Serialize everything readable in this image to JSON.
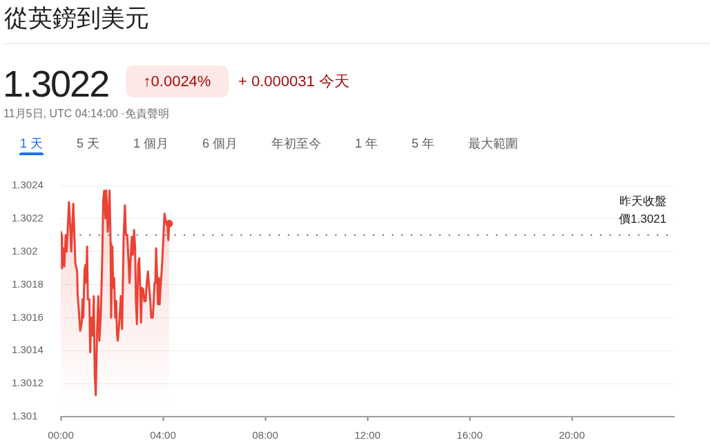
{
  "chart_data": {
    "type": "area",
    "title": "從英鎊到美元",
    "subtitle": "1.3022",
    "annotations": [
      "↑0.0024%",
      "+ 0.000031 今天",
      "11月5日, UTC 04:14:00 ·免責聲明",
      "1 天",
      "5 天",
      "1 個月",
      "6 個月",
      "年初至今",
      "1 年",
      "5 年",
      "最大範圍"
    ],
    "x": [
      0,
      0.04,
      0.05,
      0.1,
      0.14,
      0.19,
      0.23,
      0.28,
      0.32,
      0.37,
      0.41,
      0.49,
      0.52,
      0.57,
      0.64,
      0.66,
      0.7,
      0.76,
      0.82,
      0.85,
      0.88,
      0.93,
      0.97,
      1.0,
      1.03,
      1.06,
      1.12,
      1.15,
      1.2,
      1.25,
      1.29,
      1.33,
      1.37,
      1.42,
      1.47,
      1.51,
      1.56,
      1.6,
      1.63,
      1.66,
      1.7,
      1.75,
      1.78,
      1.84,
      1.91,
      1.95,
      1.97,
      2.02,
      2.05,
      2.09,
      2.13,
      2.17,
      2.2,
      2.23,
      2.29,
      2.35,
      2.4,
      2.42,
      2.46,
      2.51,
      2.55,
      2.6,
      2.64,
      2.69,
      2.73,
      2.78,
      2.82,
      2.87,
      2.91,
      2.94,
      2.98,
      3.03,
      3.07,
      3.11,
      3.14,
      3.18,
      3.23,
      3.27,
      3.32,
      3.36,
      3.41,
      3.46,
      3.5,
      3.54,
      3.6,
      3.63,
      3.67,
      3.7,
      3.73,
      3.77,
      3.8,
      3.84,
      3.87,
      3.91,
      3.96,
      4.02,
      4.06,
      4.11,
      4.17,
      4.21,
      4.24
    ],
    "values": [
      1.30212,
      1.3021,
      1.3019,
      1.30202,
      1.30191,
      1.3021,
      1.302,
      1.30216,
      1.3023,
      1.30216,
      1.302,
      1.30229,
      1.30216,
      1.30193,
      1.30188,
      1.30174,
      1.30166,
      1.30152,
      1.30157,
      1.30171,
      1.3016,
      1.30189,
      1.30192,
      1.30181,
      1.30203,
      1.30171,
      1.30171,
      1.30139,
      1.3016,
      1.30149,
      1.30173,
      1.30125,
      1.30113,
      1.30152,
      1.30173,
      1.30146,
      1.3016,
      1.30181,
      1.30202,
      1.30231,
      1.30237,
      1.3022,
      1.30237,
      1.30212,
      1.30237,
      1.30205,
      1.3016,
      1.30203,
      1.30178,
      1.30184,
      1.3016,
      1.3017,
      1.3015,
      1.30146,
      1.30157,
      1.30173,
      1.30153,
      1.30171,
      1.30209,
      1.30228,
      1.3021,
      1.3021,
      1.30198,
      1.30181,
      1.30195,
      1.30209,
      1.30198,
      1.30213,
      1.30202,
      1.3017,
      1.30156,
      1.30192,
      1.30196,
      1.30177,
      1.30157,
      1.30178,
      1.30177,
      1.3017,
      1.3017,
      1.3018,
      1.30188,
      1.30178,
      1.30171,
      1.3016,
      1.3016,
      1.30168,
      1.30181,
      1.30181,
      1.30202,
      1.30185,
      1.30168,
      1.30184,
      1.30168,
      1.3018,
      1.30191,
      1.3021,
      1.30223,
      1.30218,
      1.30218,
      1.30207,
      1.30217
    ],
    "color": "#ea4335",
    "xlim": [
      0,
      24
    ],
    "xticks": [
      {
        "value": 0,
        "label": "00:00"
      },
      {
        "value": 4,
        "label": "04:00"
      },
      {
        "value": 8,
        "label": "08:00"
      },
      {
        "value": 12,
        "label": "12:00"
      },
      {
        "value": 16,
        "label": "16:00"
      },
      {
        "value": 20,
        "label": "20:00"
      }
    ],
    "ylim": [
      1.301,
      1.3024
    ],
    "yticks": [
      1.301,
      1.3012,
      1.3014,
      1.3016,
      1.3018,
      1.302,
      1.3022,
      1.3024
    ],
    "grid": "y",
    "ref_lines": [
      {
        "axis": "y",
        "value": 1.3021,
        "label": "昨天收盤價1.3021",
        "line_style": "dotted",
        "color": "#5f6368"
      }
    ]
  }
}
